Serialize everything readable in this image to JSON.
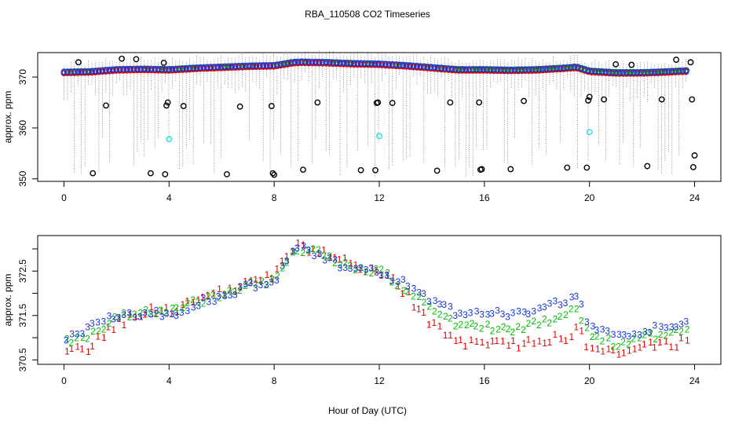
{
  "title": "RBA_110508  CO2 Timeseries",
  "colors": {
    "outlier": "#000000",
    "cyan": "#22dddd",
    "red": "#dd0000",
    "green": "#00bb00",
    "blue": "#1133dd",
    "boxplot": "#555555"
  },
  "chart_data": [
    {
      "type": "scatter",
      "name": "top-panel",
      "ylabel": "approx. ppm",
      "xlabel": "",
      "xlim": [
        -1,
        25
      ],
      "ylim": [
        349.5,
        374.8
      ],
      "xticks": [
        0,
        4,
        8,
        12,
        16,
        20,
        24
      ],
      "yticks": [
        350,
        360,
        370
      ],
      "xtick_labels": [
        "0",
        "4",
        "8",
        "12",
        "16",
        "20",
        "24"
      ],
      "ytick_labels": [
        "350",
        "360",
        "370"
      ],
      "outliers": [
        [
          0.55,
          372.9
        ],
        [
          1.1,
          351.1
        ],
        [
          1.6,
          364.4
        ],
        [
          2.2,
          373.6
        ],
        [
          2.75,
          373.5
        ],
        [
          3.3,
          351.1
        ],
        [
          3.8,
          372.8
        ],
        [
          3.85,
          350.9
        ],
        [
          3.9,
          364.4
        ],
        [
          3.95,
          365.0
        ],
        [
          4.55,
          364.3
        ],
        [
          6.2,
          350.9
        ],
        [
          6.7,
          364.2
        ],
        [
          7.9,
          364.3
        ],
        [
          7.95,
          351.1
        ],
        [
          8.0,
          350.8
        ],
        [
          9.1,
          351.8
        ],
        [
          9.65,
          365.0
        ],
        [
          11.3,
          351.7
        ],
        [
          11.85,
          351.7
        ],
        [
          11.9,
          364.9
        ],
        [
          11.95,
          365.0
        ],
        [
          12.5,
          364.9
        ],
        [
          14.2,
          351.6
        ],
        [
          14.7,
          365.0
        ],
        [
          15.8,
          365.0
        ],
        [
          15.85,
          351.8
        ],
        [
          15.9,
          351.9
        ],
        [
          17.0,
          351.9
        ],
        [
          17.5,
          365.3
        ],
        [
          19.15,
          352.2
        ],
        [
          19.9,
          352.2
        ],
        [
          19.95,
          365.4
        ],
        [
          20.0,
          366.1
        ],
        [
          20.55,
          365.6
        ],
        [
          21.0,
          372.5
        ],
        [
          21.6,
          372.4
        ],
        [
          22.2,
          352.5
        ],
        [
          22.75,
          365.6
        ],
        [
          23.3,
          373.4
        ],
        [
          23.85,
          372.9
        ],
        [
          23.9,
          365.6
        ],
        [
          23.95,
          352.3
        ],
        [
          24.0,
          354.6
        ]
      ],
      "cyan_points": [
        [
          4.0,
          357.8
        ],
        [
          12.0,
          358.4
        ],
        [
          20.0,
          359.2
        ]
      ],
      "mean_curve_x": [
        0,
        1,
        2,
        3,
        4,
        5,
        6,
        7,
        8,
        8.7,
        9,
        10,
        11,
        12,
        13,
        14,
        15,
        16,
        17,
        18,
        19,
        19.5,
        20,
        21,
        22,
        23,
        23.8
      ],
      "mean_curve_y": [
        371.0,
        371.1,
        371.5,
        371.6,
        371.5,
        371.8,
        372.0,
        372.2,
        372.3,
        372.9,
        373.0,
        372.9,
        372.7,
        372.6,
        372.3,
        371.9,
        371.5,
        371.5,
        371.4,
        371.5,
        371.8,
        372.0,
        371.2,
        370.9,
        370.9,
        371.1,
        371.3
      ]
    },
    {
      "type": "scatter",
      "name": "bottom-panel",
      "ylabel": "approx. ppm",
      "xlabel": "Hour of Day (UTC)",
      "xlim": [
        -1,
        25
      ],
      "ylim": [
        370.4,
        373.3
      ],
      "xticks": [
        0,
        4,
        8,
        12,
        16,
        20,
        24
      ],
      "yticks": [
        370.5,
        371.5,
        372.5
      ],
      "ytick_labels": [
        "370.5",
        "371.5",
        "372.5"
      ],
      "minor_yticks": [
        371,
        372,
        373
      ],
      "xtick_labels": [
        "0",
        "4",
        "8",
        "12",
        "16",
        "20",
        "24"
      ],
      "series": [
        {
          "name": "1",
          "marker": "1",
          "color": "red",
          "x": [
            0,
            1,
            2,
            3,
            4,
            5,
            6,
            7,
            8,
            8.7,
            9,
            10,
            11,
            12,
            13,
            14,
            15,
            16,
            17,
            18,
            19,
            19.5,
            20,
            21,
            22,
            23,
            23.8
          ],
          "y": [
            370.6,
            370.8,
            371.3,
            371.6,
            371.6,
            371.85,
            372.0,
            372.2,
            372.4,
            373.0,
            373.05,
            372.9,
            372.6,
            372.5,
            372.0,
            371.3,
            370.9,
            370.8,
            370.85,
            370.9,
            371.0,
            371.2,
            370.8,
            370.6,
            370.8,
            370.85,
            370.95
          ]
        },
        {
          "name": "2",
          "marker": "2",
          "color": "green",
          "x": [
            0,
            1,
            2,
            3,
            4,
            5,
            6,
            7,
            8,
            8.7,
            9,
            10,
            11,
            12,
            13,
            14,
            15,
            16,
            17,
            18,
            19,
            19.5,
            20,
            21,
            22,
            23,
            23.8
          ],
          "y": [
            370.9,
            371.05,
            371.45,
            371.6,
            371.55,
            371.8,
            372.0,
            372.2,
            372.3,
            372.95,
            373.0,
            372.85,
            372.55,
            372.5,
            372.1,
            371.6,
            371.3,
            371.25,
            371.2,
            371.3,
            371.5,
            371.7,
            371.1,
            370.85,
            371.0,
            371.05,
            371.15
          ]
        },
        {
          "name": "3",
          "marker": "3",
          "color": "blue",
          "x": [
            0,
            1,
            2,
            3,
            4,
            5,
            6,
            7,
            8,
            8.7,
            9,
            10,
            11,
            12,
            13,
            14,
            15,
            16,
            17,
            18,
            19,
            19.5,
            20,
            21,
            22,
            23,
            23.8
          ],
          "y": [
            371.0,
            371.2,
            371.5,
            371.55,
            371.5,
            371.75,
            371.95,
            372.15,
            372.25,
            372.95,
            373.0,
            372.8,
            372.5,
            372.5,
            372.2,
            371.8,
            371.55,
            371.6,
            371.5,
            371.6,
            371.8,
            371.95,
            371.3,
            371.05,
            371.15,
            371.25,
            371.35
          ]
        }
      ]
    }
  ]
}
